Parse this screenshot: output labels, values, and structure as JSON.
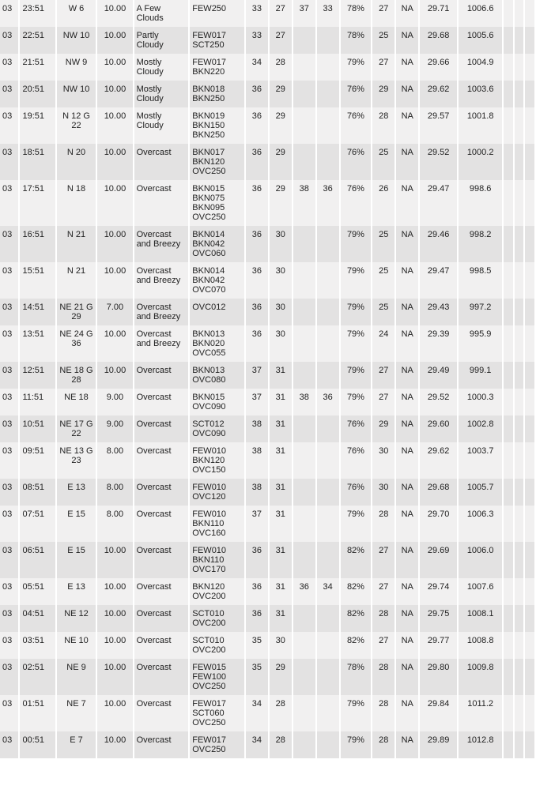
{
  "table": {
    "columns": [
      {
        "key": "day",
        "class": "c-day"
      },
      {
        "key": "time",
        "class": "c-time"
      },
      {
        "key": "wind",
        "class": "c-wind"
      },
      {
        "key": "vis",
        "class": "c-vis"
      },
      {
        "key": "cond",
        "class": "c-cond"
      },
      {
        "key": "sky",
        "class": "c-sky"
      },
      {
        "key": "t1",
        "class": "c-t1"
      },
      {
        "key": "t2",
        "class": "c-t2"
      },
      {
        "key": "t3",
        "class": "c-t3"
      },
      {
        "key": "t4",
        "class": "c-t4"
      },
      {
        "key": "rh",
        "class": "c-rh"
      },
      {
        "key": "d1",
        "class": "c-d1"
      },
      {
        "key": "d2",
        "class": "c-d2"
      },
      {
        "key": "alt",
        "class": "c-alt"
      },
      {
        "key": "slp",
        "class": "c-slp"
      },
      {
        "key": "x1",
        "class": "c-x1"
      },
      {
        "key": "x2",
        "class": "c-x2"
      },
      {
        "key": "x3",
        "class": "c-x3"
      }
    ],
    "row_bg_odd": "#f1f0f0",
    "row_bg_even": "#e3e2e2",
    "font_size": 11,
    "rows": [
      {
        "day": "03",
        "time": "23:51",
        "wind": "W 6",
        "vis": "10.00",
        "cond": "A Few Clouds",
        "sky": "FEW250",
        "t1": "33",
        "t2": "27",
        "t3": "37",
        "t4": "33",
        "rh": "78%",
        "d1": "27",
        "d2": "NA",
        "alt": "29.71",
        "slp": "1006.6",
        "x1": "",
        "x2": "",
        "x3": ""
      },
      {
        "day": "03",
        "time": "22:51",
        "wind": "NW 10",
        "vis": "10.00",
        "cond": "Partly Cloudy",
        "sky": "FEW017 SCT250",
        "t1": "33",
        "t2": "27",
        "t3": "",
        "t4": "",
        "rh": "78%",
        "d1": "25",
        "d2": "NA",
        "alt": "29.68",
        "slp": "1005.6",
        "x1": "",
        "x2": "",
        "x3": ""
      },
      {
        "day": "03",
        "time": "21:51",
        "wind": "NW 9",
        "vis": "10.00",
        "cond": "Mostly Cloudy",
        "sky": "FEW017 BKN220",
        "t1": "34",
        "t2": "28",
        "t3": "",
        "t4": "",
        "rh": "79%",
        "d1": "27",
        "d2": "NA",
        "alt": "29.66",
        "slp": "1004.9",
        "x1": "",
        "x2": "",
        "x3": ""
      },
      {
        "day": "03",
        "time": "20:51",
        "wind": "NW 10",
        "vis": "10.00",
        "cond": "Mostly Cloudy",
        "sky": "BKN018 BKN250",
        "t1": "36",
        "t2": "29",
        "t3": "",
        "t4": "",
        "rh": "76%",
        "d1": "29",
        "d2": "NA",
        "alt": "29.62",
        "slp": "1003.6",
        "x1": "",
        "x2": "",
        "x3": ""
      },
      {
        "day": "03",
        "time": "19:51",
        "wind": "N 12 G 22",
        "vis": "10.00",
        "cond": "Mostly Cloudy",
        "sky": "BKN019 BKN150 BKN250",
        "t1": "36",
        "t2": "29",
        "t3": "",
        "t4": "",
        "rh": "76%",
        "d1": "28",
        "d2": "NA",
        "alt": "29.57",
        "slp": "1001.8",
        "x1": "",
        "x2": "",
        "x3": ""
      },
      {
        "day": "03",
        "time": "18:51",
        "wind": "N 20",
        "vis": "10.00",
        "cond": "Overcast",
        "sky": "BKN017 BKN120 OVC250",
        "t1": "36",
        "t2": "29",
        "t3": "",
        "t4": "",
        "rh": "76%",
        "d1": "25",
        "d2": "NA",
        "alt": "29.52",
        "slp": "1000.2",
        "x1": "",
        "x2": "",
        "x3": ""
      },
      {
        "day": "03",
        "time": "17:51",
        "wind": "N 18",
        "vis": "10.00",
        "cond": "Overcast",
        "sky": "BKN015 BKN075 BKN095 OVC250",
        "t1": "36",
        "t2": "29",
        "t3": "38",
        "t4": "36",
        "rh": "76%",
        "d1": "26",
        "d2": "NA",
        "alt": "29.47",
        "slp": "998.6",
        "x1": "",
        "x2": "",
        "x3": ""
      },
      {
        "day": "03",
        "time": "16:51",
        "wind": "N 21",
        "vis": "10.00",
        "cond": "Overcast and Breezy",
        "sky": "BKN014 BKN042 OVC060",
        "t1": "36",
        "t2": "30",
        "t3": "",
        "t4": "",
        "rh": "79%",
        "d1": "25",
        "d2": "NA",
        "alt": "29.46",
        "slp": "998.2",
        "x1": "",
        "x2": "",
        "x3": ""
      },
      {
        "day": "03",
        "time": "15:51",
        "wind": "N 21",
        "vis": "10.00",
        "cond": "Overcast and Breezy",
        "sky": "BKN014 BKN042 OVC070",
        "t1": "36",
        "t2": "30",
        "t3": "",
        "t4": "",
        "rh": "79%",
        "d1": "25",
        "d2": "NA",
        "alt": "29.47",
        "slp": "998.5",
        "x1": "",
        "x2": "",
        "x3": ""
      },
      {
        "day": "03",
        "time": "14:51",
        "wind": "NE 21 G 29",
        "vis": "7.00",
        "cond": "Overcast and Breezy",
        "sky": "OVC012",
        "t1": "36",
        "t2": "30",
        "t3": "",
        "t4": "",
        "rh": "79%",
        "d1": "25",
        "d2": "NA",
        "alt": "29.43",
        "slp": "997.2",
        "x1": "",
        "x2": "",
        "x3": ""
      },
      {
        "day": "03",
        "time": "13:51",
        "wind": "NE 24 G 36",
        "vis": "10.00",
        "cond": "Overcast and Breezy",
        "sky": "BKN013 BKN020 OVC055",
        "t1": "36",
        "t2": "30",
        "t3": "",
        "t4": "",
        "rh": "79%",
        "d1": "24",
        "d2": "NA",
        "alt": "29.39",
        "slp": "995.9",
        "x1": "",
        "x2": "",
        "x3": ""
      },
      {
        "day": "03",
        "time": "12:51",
        "wind": "NE 18 G 28",
        "vis": "10.00",
        "cond": "Overcast",
        "sky": "BKN013 OVC080",
        "t1": "37",
        "t2": "31",
        "t3": "",
        "t4": "",
        "rh": "79%",
        "d1": "27",
        "d2": "NA",
        "alt": "29.49",
        "slp": "999.1",
        "x1": "",
        "x2": "",
        "x3": ""
      },
      {
        "day": "03",
        "time": "11:51",
        "wind": "NE 18",
        "vis": "9.00",
        "cond": "Overcast",
        "sky": "BKN015 OVC090",
        "t1": "37",
        "t2": "31",
        "t3": "38",
        "t4": "36",
        "rh": "79%",
        "d1": "27",
        "d2": "NA",
        "alt": "29.52",
        "slp": "1000.3",
        "x1": "",
        "x2": "",
        "x3": ""
      },
      {
        "day": "03",
        "time": "10:51",
        "wind": "NE 17 G 22",
        "vis": "9.00",
        "cond": "Overcast",
        "sky": "SCT012 OVC090",
        "t1": "38",
        "t2": "31",
        "t3": "",
        "t4": "",
        "rh": "76%",
        "d1": "29",
        "d2": "NA",
        "alt": "29.60",
        "slp": "1002.8",
        "x1": "",
        "x2": "",
        "x3": ""
      },
      {
        "day": "03",
        "time": "09:51",
        "wind": "NE 13 G 23",
        "vis": "8.00",
        "cond": "Overcast",
        "sky": "FEW010 BKN120 OVC150",
        "t1": "38",
        "t2": "31",
        "t3": "",
        "t4": "",
        "rh": "76%",
        "d1": "30",
        "d2": "NA",
        "alt": "29.62",
        "slp": "1003.7",
        "x1": "",
        "x2": "",
        "x3": ""
      },
      {
        "day": "03",
        "time": "08:51",
        "wind": "E 13",
        "vis": "8.00",
        "cond": "Overcast",
        "sky": "FEW010 OVC120",
        "t1": "38",
        "t2": "31",
        "t3": "",
        "t4": "",
        "rh": "76%",
        "d1": "30",
        "d2": "NA",
        "alt": "29.68",
        "slp": "1005.7",
        "x1": "",
        "x2": "",
        "x3": ""
      },
      {
        "day": "03",
        "time": "07:51",
        "wind": "E 15",
        "vis": "8.00",
        "cond": "Overcast",
        "sky": "FEW010 BKN110 OVC160",
        "t1": "37",
        "t2": "31",
        "t3": "",
        "t4": "",
        "rh": "79%",
        "d1": "28",
        "d2": "NA",
        "alt": "29.70",
        "slp": "1006.3",
        "x1": "",
        "x2": "",
        "x3": ""
      },
      {
        "day": "03",
        "time": "06:51",
        "wind": "E 15",
        "vis": "10.00",
        "cond": "Overcast",
        "sky": "FEW010 BKN110 OVC170",
        "t1": "36",
        "t2": "31",
        "t3": "",
        "t4": "",
        "rh": "82%",
        "d1": "27",
        "d2": "NA",
        "alt": "29.69",
        "slp": "1006.0",
        "x1": "",
        "x2": "",
        "x3": ""
      },
      {
        "day": "03",
        "time": "05:51",
        "wind": "E 13",
        "vis": "10.00",
        "cond": "Overcast",
        "sky": "BKN120 OVC200",
        "t1": "36",
        "t2": "31",
        "t3": "36",
        "t4": "34",
        "rh": "82%",
        "d1": "27",
        "d2": "NA",
        "alt": "29.74",
        "slp": "1007.6",
        "x1": "",
        "x2": "",
        "x3": ""
      },
      {
        "day": "03",
        "time": "04:51",
        "wind": "NE 12",
        "vis": "10.00",
        "cond": "Overcast",
        "sky": "SCT010 OVC200",
        "t1": "36",
        "t2": "31",
        "t3": "",
        "t4": "",
        "rh": "82%",
        "d1": "28",
        "d2": "NA",
        "alt": "29.75",
        "slp": "1008.1",
        "x1": "",
        "x2": "",
        "x3": ""
      },
      {
        "day": "03",
        "time": "03:51",
        "wind": "NE 10",
        "vis": "10.00",
        "cond": "Overcast",
        "sky": "SCT010 OVC200",
        "t1": "35",
        "t2": "30",
        "t3": "",
        "t4": "",
        "rh": "82%",
        "d1": "27",
        "d2": "NA",
        "alt": "29.77",
        "slp": "1008.8",
        "x1": "",
        "x2": "",
        "x3": ""
      },
      {
        "day": "03",
        "time": "02:51",
        "wind": "NE 9",
        "vis": "10.00",
        "cond": "Overcast",
        "sky": "FEW015 FEW100 OVC250",
        "t1": "35",
        "t2": "29",
        "t3": "",
        "t4": "",
        "rh": "78%",
        "d1": "28",
        "d2": "NA",
        "alt": "29.80",
        "slp": "1009.8",
        "x1": "",
        "x2": "",
        "x3": ""
      },
      {
        "day": "03",
        "time": "01:51",
        "wind": "NE 7",
        "vis": "10.00",
        "cond": "Overcast",
        "sky": "FEW017 SCT060 OVC250",
        "t1": "34",
        "t2": "28",
        "t3": "",
        "t4": "",
        "rh": "79%",
        "d1": "28",
        "d2": "NA",
        "alt": "29.84",
        "slp": "1011.2",
        "x1": "",
        "x2": "",
        "x3": ""
      },
      {
        "day": "03",
        "time": "00:51",
        "wind": "E 7",
        "vis": "10.00",
        "cond": "Overcast",
        "sky": "FEW017 OVC250",
        "t1": "34",
        "t2": "28",
        "t3": "",
        "t4": "",
        "rh": "79%",
        "d1": "28",
        "d2": "NA",
        "alt": "29.89",
        "slp": "1012.8",
        "x1": "",
        "x2": "",
        "x3": ""
      }
    ]
  }
}
